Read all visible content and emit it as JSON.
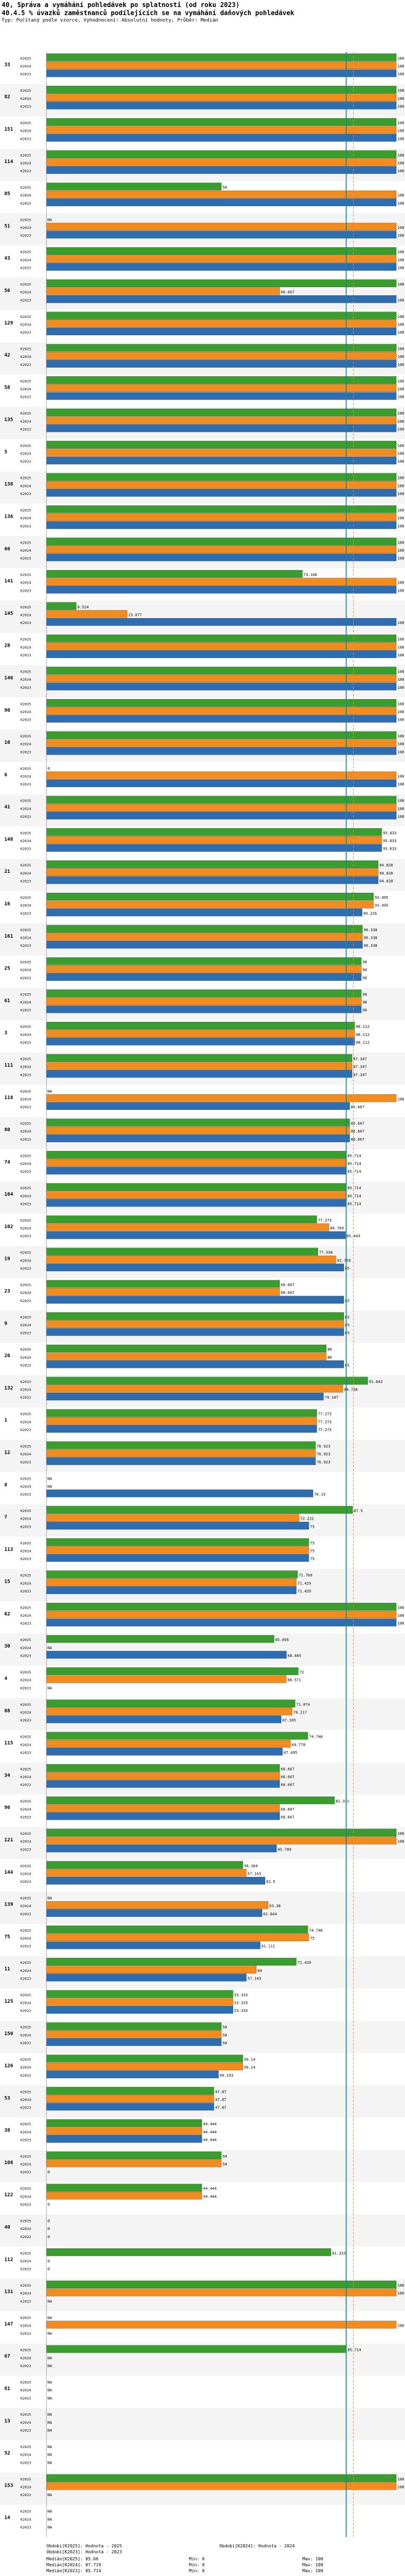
{
  "title": "40, Správa a vymáhání pohledávek po splatnosti (od roku 2023)",
  "subtitle": "40.4.5 % úvazků zaměstnanců podílejících se na vymáhání daňových pohledávek",
  "meta": "Typ: Počítaný podle vzorce, Vyhodnocení: Absolutní hodnoty, Průběr: Medián",
  "na_label": "NA",
  "colors": {
    "K2025": "#3a9e2e",
    "K2024": "#f28c1e",
    "K2023": "#2e6eb0",
    "median": "#1a8c7c",
    "median_dash1": "#f28c1e",
    "median_dash2": "#2e6eb0"
  },
  "chart_data": {
    "type": "bar",
    "orientation": "horizontal",
    "title": "40.4.5 % úvazků zaměstnanců podílejících se na vymáhání daňových pohledávek",
    "xlim": [
      0,
      100
    ],
    "series_names": [
      "K2025",
      "K2024",
      "K2023"
    ],
    "medians": {
      "K2025": 85.66,
      "K2024": 87.719,
      "K2023": 85.714
    },
    "groups": [
      {
        "id": "33",
        "values": [
          100,
          100,
          100
        ]
      },
      {
        "id": "82",
        "values": [
          100,
          100,
          100
        ]
      },
      {
        "id": "151",
        "values": [
          100,
          100,
          100
        ]
      },
      {
        "id": "114",
        "values": [
          100,
          100,
          100
        ]
      },
      {
        "id": "85",
        "values": [
          50,
          100,
          100
        ]
      },
      {
        "id": "51",
        "values": [
          null,
          100,
          100
        ]
      },
      {
        "id": "43",
        "values": [
          100,
          100,
          100
        ]
      },
      {
        "id": "56",
        "values": [
          100,
          66.667,
          100
        ]
      },
      {
        "id": "129",
        "values": [
          100,
          100,
          100
        ]
      },
      {
        "id": "42",
        "values": [
          100,
          100,
          100
        ]
      },
      {
        "id": "58",
        "values": [
          100,
          100,
          100
        ]
      },
      {
        "id": "135",
        "values": [
          100,
          100,
          100
        ]
      },
      {
        "id": "5",
        "values": [
          100,
          100,
          100
        ]
      },
      {
        "id": "138",
        "values": [
          100,
          100,
          100
        ]
      },
      {
        "id": "136",
        "values": [
          100,
          100,
          100
        ]
      },
      {
        "id": "66",
        "values": [
          100,
          100,
          100
        ]
      },
      {
        "id": "141",
        "values": [
          73.166,
          100,
          100
        ]
      },
      {
        "id": "145",
        "values": [
          8.524,
          23.077,
          100
        ]
      },
      {
        "id": "28",
        "values": [
          100,
          100,
          100
        ]
      },
      {
        "id": "146",
        "values": [
          100,
          100,
          100
        ]
      },
      {
        "id": "90",
        "values": [
          100,
          100,
          100
        ]
      },
      {
        "id": "10",
        "values": [
          100,
          100,
          100
        ]
      },
      {
        "id": "6",
        "values": [
          0,
          100,
          100
        ]
      },
      {
        "id": "41",
        "values": [
          100,
          100,
          100
        ]
      },
      {
        "id": "148",
        "values": [
          95.833,
          95.833,
          95.833
        ]
      },
      {
        "id": "21",
        "values": [
          94.828,
          94.828,
          94.828
        ]
      },
      {
        "id": "16",
        "values": [
          93.495,
          93.495,
          90.226
        ]
      },
      {
        "id": "161",
        "values": [
          90.338,
          90.338,
          90.338
        ]
      },
      {
        "id": "25",
        "values": [
          90,
          90,
          90
        ]
      },
      {
        "id": "61",
        "values": [
          90,
          90,
          90
        ]
      },
      {
        "id": "3",
        "values": [
          88.112,
          88.112,
          88.112
        ]
      },
      {
        "id": "111",
        "values": [
          87.347,
          87.347,
          87.347
        ]
      },
      {
        "id": "118",
        "values": [
          null,
          100,
          86.667
        ]
      },
      {
        "id": "80",
        "values": [
          86.667,
          86.667,
          86.667
        ]
      },
      {
        "id": "74",
        "values": [
          85.714,
          85.714,
          85.714
        ]
      },
      {
        "id": "104",
        "values": [
          85.714,
          85.714,
          85.714
        ]
      },
      {
        "id": "102",
        "values": [
          77.273,
          80.769,
          85.443
        ]
      },
      {
        "id": "19",
        "values": [
          77.598,
          82.759,
          85
        ]
      },
      {
        "id": "23",
        "values": [
          66.667,
          66.667,
          85
        ]
      },
      {
        "id": "9",
        "values": [
          85,
          85,
          85
        ]
      },
      {
        "id": "26",
        "values": [
          80,
          80,
          85
        ]
      },
      {
        "id": "132",
        "values": [
          91.843,
          84.738,
          79.187
        ]
      },
      {
        "id": "1",
        "values": [
          77.273,
          77.273,
          77.273
        ]
      },
      {
        "id": "12",
        "values": [
          76.923,
          76.923,
          76.923
        ]
      },
      {
        "id": "8",
        "values": [
          null,
          null,
          76.19
        ]
      },
      {
        "id": "7",
        "values": [
          87.5,
          72.222,
          75
        ]
      },
      {
        "id": "113",
        "values": [
          75,
          75,
          75
        ]
      },
      {
        "id": "15",
        "values": [
          71.769,
          71.429,
          71.429
        ]
      },
      {
        "id": "62",
        "values": [
          100,
          100,
          100
        ]
      },
      {
        "id": "30",
        "values": [
          65.056,
          null,
          68.605
        ]
      },
      {
        "id": "4",
        "values": [
          72,
          68.571,
          null
        ]
      },
      {
        "id": "88",
        "values": [
          71.074,
          70.217,
          67.105
        ]
      },
      {
        "id": "115",
        "values": [
          74.746,
          69.778,
          67.495
        ]
      },
      {
        "id": "34",
        "values": [
          66.667,
          66.667,
          66.667
        ]
      },
      {
        "id": "96",
        "values": [
          82.331,
          66.667,
          66.667
        ]
      },
      {
        "id": "121",
        "values": [
          100,
          100,
          65.789
        ]
      },
      {
        "id": "144",
        "values": [
          56.164,
          57.143,
          62.5
        ]
      },
      {
        "id": "139",
        "values": [
          null,
          63.38,
          61.644
        ]
      },
      {
        "id": "75",
        "values": [
          74.746,
          75,
          61.111
        ]
      },
      {
        "id": "11",
        "values": [
          71.429,
          60,
          57.143
        ]
      },
      {
        "id": "125",
        "values": [
          53.333,
          53.333,
          53.333
        ]
      },
      {
        "id": "150",
        "values": [
          50,
          50,
          50
        ]
      },
      {
        "id": "126",
        "values": [
          56.14,
          56.14,
          49.193
        ]
      },
      {
        "id": "53",
        "values": [
          47.87,
          47.87,
          47.87
        ]
      },
      {
        "id": "38",
        "values": [
          44.444,
          44.444,
          44.444
        ]
      },
      {
        "id": "108",
        "values": [
          50,
          50,
          0
        ]
      },
      {
        "id": "122",
        "values": [
          44.444,
          44.444,
          0
        ]
      },
      {
        "id": "40",
        "values": [
          0,
          0,
          0
        ]
      },
      {
        "id": "112",
        "values": [
          81.333,
          0,
          0
        ]
      },
      {
        "id": "131",
        "values": [
          100,
          100,
          null
        ]
      },
      {
        "id": "147",
        "values": [
          null,
          100,
          null
        ]
      },
      {
        "id": "67",
        "values": [
          85.714,
          null,
          null
        ]
      },
      {
        "id": "81",
        "values": [
          null,
          null,
          null
        ]
      },
      {
        "id": "13",
        "values": [
          null,
          null,
          null
        ]
      },
      {
        "id": "52",
        "values": [
          null,
          null,
          null
        ]
      },
      {
        "id": "153",
        "values": [
          100,
          100,
          null
        ]
      },
      {
        "id": "14",
        "values": [
          null,
          null,
          null
        ]
      }
    ]
  },
  "footer": {
    "legend": [
      {
        "label": "Obdobi[K2025]: Hodnota - 2025",
        "color": "#3a9e2e"
      },
      {
        "label": "Obdobi[K2024]: Hodnota - 2024",
        "color": "#f28c1e"
      },
      {
        "label": "Obdobi[K2023]: Hodnota - 2023",
        "color": "#2e6eb0"
      }
    ],
    "medians": [
      "Medián[K2025]: 85.66",
      "Medián[K2024]: 87.719",
      "Medián[K2023]: 85.714"
    ],
    "mins": [
      "Min: 0",
      "Min: 0",
      "Min: 0"
    ],
    "maxs": [
      "Max: 100",
      "Max: 100",
      "Max: 100"
    ]
  }
}
